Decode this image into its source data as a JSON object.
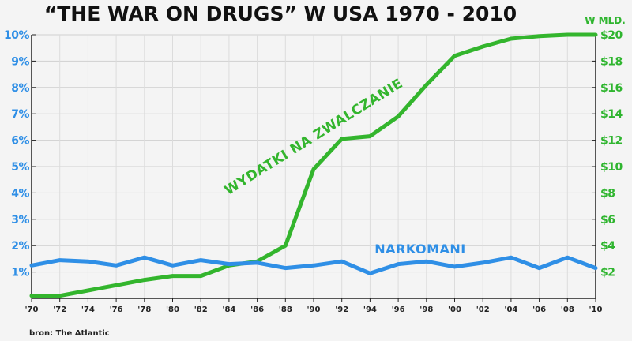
{
  "chart_data": {
    "type": "line",
    "title": "“THE WAR ON DRUGS” W USA 1970 - 2010",
    "right_axis_unit": "W MLD.",
    "source": "bron: The Atlantic",
    "x": [
      1970,
      1972,
      1974,
      1976,
      1978,
      1980,
      1982,
      1984,
      1986,
      1988,
      1990,
      1992,
      1994,
      1996,
      1998,
      2000,
      2002,
      2004,
      2006,
      2008,
      2010
    ],
    "x_tick_labels": [
      "'70",
      "'72",
      "'74",
      "'76",
      "'78",
      "'80",
      "'82",
      "'84",
      "'86",
      "'88",
      "'90",
      "'92",
      "'94",
      "'96",
      "'98",
      "'00",
      "'02",
      "'04",
      "'06",
      "'08",
      "'10"
    ],
    "left_axis": {
      "range": [
        0,
        10
      ],
      "ticks": [
        1,
        2,
        3,
        4,
        5,
        6,
        7,
        8,
        9,
        10
      ],
      "tick_labels": [
        "1%",
        "2%",
        "3%",
        "4%",
        "5%",
        "6%",
        "7%",
        "8%",
        "9%",
        "10%"
      ],
      "color": "#2f8fe6"
    },
    "right_axis": {
      "range": [
        0,
        20
      ],
      "ticks": [
        2,
        4,
        6,
        8,
        10,
        12,
        14,
        16,
        18,
        20
      ],
      "tick_labels": [
        "$2",
        "$4",
        "$6",
        "$8",
        "$10",
        "$12",
        "$14",
        "$16",
        "$18",
        "$20"
      ],
      "color": "#2fb52f"
    },
    "series": [
      {
        "name": "WYDATKI NA ZWALCZANIE",
        "axis": "right",
        "color": "#33b52d",
        "values": [
          0.2,
          0.2,
          0.6,
          1.0,
          1.4,
          1.7,
          1.7,
          2.5,
          2.8,
          4.0,
          9.8,
          12.1,
          12.3,
          13.8,
          16.2,
          18.4,
          19.1,
          19.7,
          19.9,
          20.0,
          20.0
        ]
      },
      {
        "name": "NARKOMANI",
        "axis": "left",
        "color": "#2f8fe6",
        "values": [
          1.25,
          1.45,
          1.4,
          1.25,
          1.55,
          1.25,
          1.45,
          1.3,
          1.35,
          1.15,
          1.25,
          1.4,
          0.95,
          1.3,
          1.4,
          1.2,
          1.35,
          1.55,
          1.15,
          1.55,
          1.15
        ]
      }
    ]
  }
}
